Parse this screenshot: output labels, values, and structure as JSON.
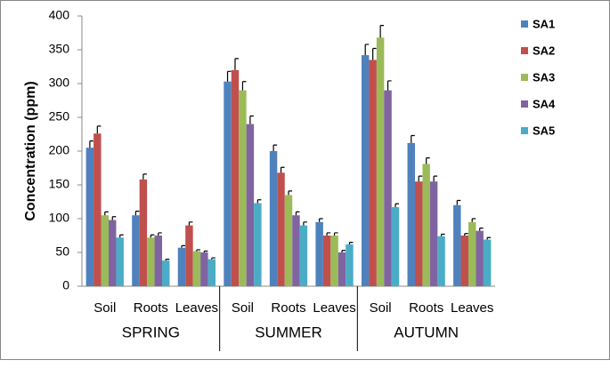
{
  "chart_data": {
    "type": "bar",
    "y_label": "Concentration (ppm)",
    "categories": [
      "Soil",
      "Roots",
      "Leaves",
      "Soil",
      "Roots",
      "Leaves",
      "Soil",
      "Roots",
      "Leaves"
    ],
    "groups": [
      "SPRING",
      "SUMMER",
      "AUTUMN"
    ],
    "ylim": [
      0,
      400
    ],
    "yticks": [
      0,
      50,
      100,
      150,
      200,
      250,
      300,
      350,
      400
    ],
    "grid": false,
    "legend": "right",
    "series": [
      {
        "name": "SA1",
        "color": "#4f81bd",
        "values": [
          205,
          105,
          57,
          303,
          200,
          95,
          342,
          212,
          120
        ],
        "errors": [
          10,
          6,
          3,
          15,
          9,
          5,
          16,
          11,
          7
        ]
      },
      {
        "name": "SA2",
        "color": "#c0504d",
        "values": [
          226,
          158,
          90,
          320,
          168,
          75,
          335,
          155,
          75
        ],
        "errors": [
          11,
          8,
          5,
          17,
          8,
          4,
          17,
          8,
          3
        ]
      },
      {
        "name": "SA3",
        "color": "#9bbb59",
        "values": [
          105,
          72,
          52,
          290,
          135,
          75,
          368,
          181,
          95
        ],
        "errors": [
          5,
          4,
          2,
          13,
          6,
          4,
          18,
          9,
          5
        ]
      },
      {
        "name": "SA4",
        "color": "#8064a2",
        "values": [
          98,
          75,
          50,
          240,
          105,
          50,
          290,
          155,
          82
        ],
        "errors": [
          5,
          4,
          2,
          12,
          5,
          3,
          14,
          8,
          4
        ]
      },
      {
        "name": "SA5",
        "color": "#4bacc6",
        "values": [
          72,
          38,
          40,
          123,
          90,
          62,
          117,
          74,
          69
        ],
        "errors": [
          4,
          2,
          2,
          5,
          5,
          3,
          5,
          3,
          3
        ]
      }
    ]
  }
}
